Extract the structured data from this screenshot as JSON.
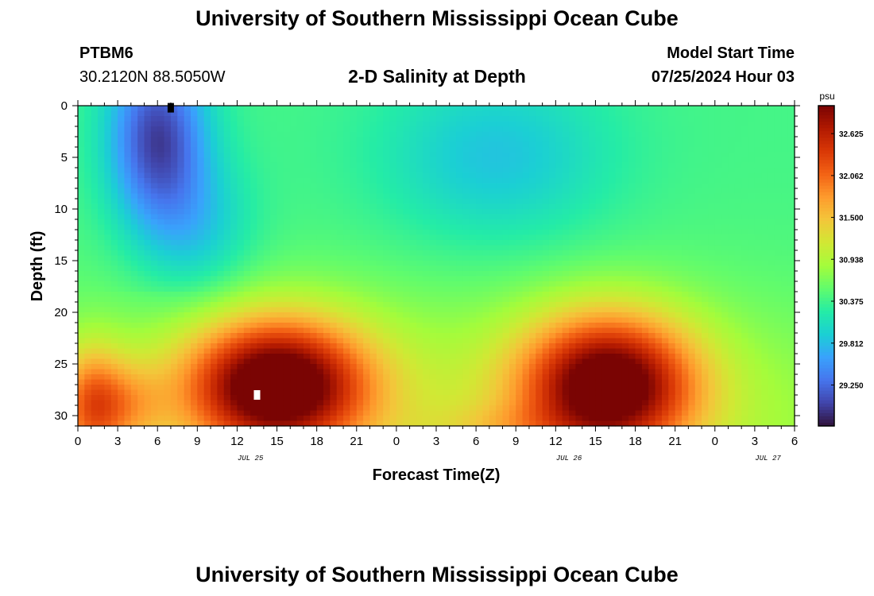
{
  "header": {
    "title": "University of Southern Mississippi Ocean Cube",
    "station_id": "PTBM6",
    "coords": "30.2120N  88.5050W",
    "plot_title": "2-D Salinity at Depth",
    "start_label": "Model Start Time",
    "start_value": "07/25/2024 Hour 03"
  },
  "footer": {
    "title": "University of Southern Mississippi Ocean Cube"
  },
  "chart_data": {
    "type": "heatmap",
    "title": "2-D Salinity at Depth",
    "xlabel": "Forecast Time(Z)",
    "ylabel": "Depth (ft)",
    "x_tick_labels": [
      "0",
      "3",
      "6",
      "9",
      "12",
      "15",
      "18",
      "21",
      "0",
      "3",
      "6",
      "9",
      "12",
      "15",
      "18",
      "21",
      "0",
      "3",
      "6"
    ],
    "x_range_hours": [
      0,
      54
    ],
    "date_labels": [
      {
        "text": "JUL 25",
        "hour": 13
      },
      {
        "text": "JUL 26",
        "hour": 37
      },
      {
        "text": "JUL 27",
        "hour": 52
      }
    ],
    "y_ticks": [
      0,
      5,
      10,
      15,
      20,
      25,
      30
    ],
    "ylim": [
      0,
      31
    ],
    "y_inverted": true,
    "colorbar": {
      "unit": "psu",
      "labels": [
        "32.625",
        "32.062",
        "31.500",
        "30.938",
        "30.375",
        "29.812",
        "29.250"
      ],
      "range": [
        28.7,
        33.0
      ],
      "colors": [
        "#30123b",
        "#4145ab",
        "#4675ed",
        "#39a2fc",
        "#1bcfd4",
        "#24eca6",
        "#61fc6c",
        "#a4fc3b",
        "#d1e834",
        "#f3c63a",
        "#fe9b2d",
        "#f36315",
        "#d93806",
        "#b11901",
        "#7a0403"
      ]
    },
    "field_description": "salinity (psu) vs forecast hour (0-54) and depth (0-31 ft)",
    "fresh_core_1": {
      "hour": 6,
      "depth": 3,
      "value": 28.8
    },
    "salty_core_1": {
      "hour": 15,
      "depth": 27,
      "value": 32.9
    },
    "salty_core_2": {
      "hour": 40,
      "depth": 27,
      "value": 32.8
    },
    "fresh_band_2": {
      "hour_start": 25,
      "hour_end": 38,
      "depth_max": 12,
      "value": 29.9
    },
    "surface_background_value": 30.4,
    "markers": [
      {
        "hour": 7,
        "depth": 0.2,
        "color": "#000000"
      },
      {
        "hour": 13.5,
        "depth": 28,
        "color": "#ffffff"
      }
    ]
  }
}
